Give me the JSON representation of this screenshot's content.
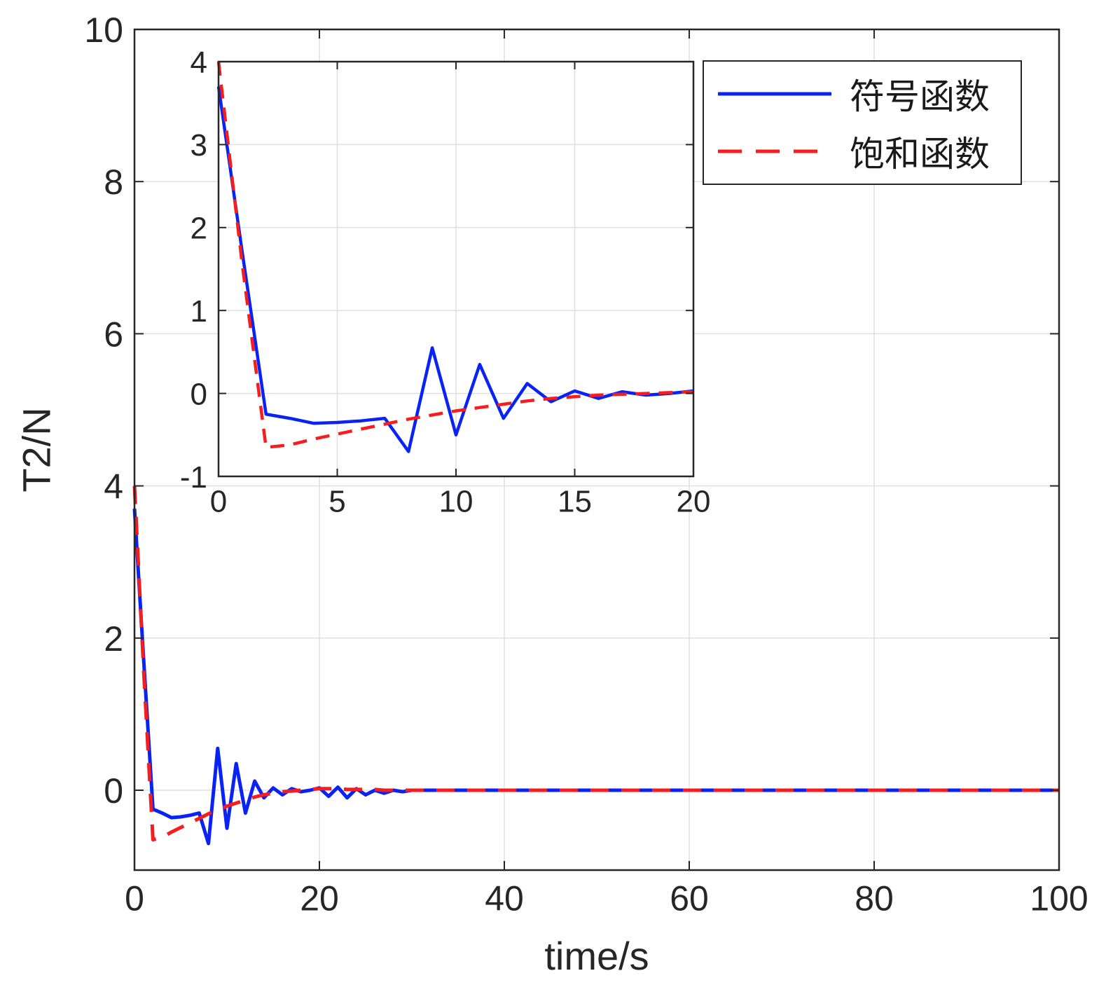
{
  "figure": {
    "background": "#ffffff"
  },
  "axis_color": "#262626",
  "grid_color": "#e0e0e0",
  "chart_data": {
    "type": "line",
    "main": {
      "xlabel": "time/s",
      "ylabel": "T2/N",
      "xlim": [
        0,
        100
      ],
      "ylim": [
        -1.05,
        10
      ],
      "xticks": [
        0,
        20,
        40,
        60,
        80,
        100
      ],
      "yticks": [
        0,
        2,
        4,
        6,
        8,
        10
      ],
      "grid": true,
      "series": [
        {
          "id": "sign-function",
          "name": "符号函数",
          "color": "#0a23f5",
          "style": "solid",
          "x": [
            0,
            1,
            2,
            3,
            4,
            5,
            6,
            7,
            8,
            9,
            10,
            11,
            12,
            13,
            14,
            15,
            16,
            17,
            18,
            19,
            20,
            21,
            22,
            23,
            24,
            25,
            26,
            27,
            28,
            29,
            30,
            35,
            40,
            45,
            50,
            55,
            60,
            65,
            70,
            75,
            80,
            85,
            90,
            95,
            100
          ],
          "y": [
            3.7,
            1.7,
            -0.25,
            -0.3,
            -0.36,
            -0.35,
            -0.33,
            -0.3,
            -0.7,
            0.55,
            -0.5,
            0.35,
            -0.3,
            0.12,
            -0.1,
            0.03,
            -0.06,
            0.02,
            -0.02,
            0,
            0.03,
            -0.08,
            0.04,
            -0.1,
            0.02,
            -0.06,
            0,
            -0.04,
            0,
            -0.02,
            0,
            0,
            0,
            0,
            0,
            0,
            0,
            0,
            0,
            0,
            0,
            0,
            0,
            0,
            0
          ]
        },
        {
          "id": "saturation-function",
          "name": "饱和函数",
          "color": "#f51d1d",
          "style": "dashed",
          "x": [
            0,
            1,
            2,
            3,
            4,
            5,
            6,
            7,
            8,
            9,
            10,
            11,
            12,
            13,
            14,
            15,
            16,
            17,
            18,
            19,
            20,
            21,
            22,
            23,
            24,
            25,
            26,
            27,
            28,
            29,
            30,
            35,
            40,
            45,
            50,
            55,
            60,
            65,
            70,
            75,
            80,
            85,
            90,
            95,
            100
          ],
          "y": [
            4,
            1.55,
            -0.65,
            -0.62,
            -0.55,
            -0.49,
            -0.43,
            -0.37,
            -0.31,
            -0.26,
            -0.21,
            -0.17,
            -0.13,
            -0.09,
            -0.06,
            -0.04,
            -0.02,
            -0.01,
            0,
            0.01,
            0.02,
            0.02,
            0.02,
            0.01,
            0.01,
            0.01,
            0.01,
            0,
            0,
            0,
            0,
            0,
            0,
            0,
            0,
            0,
            0,
            0,
            0,
            0,
            0,
            0,
            0,
            0,
            0
          ]
        }
      ]
    },
    "inset": {
      "xlim": [
        0,
        20
      ],
      "ylim": [
        -1,
        4
      ],
      "xticks": [
        0,
        5,
        10,
        15,
        20
      ],
      "yticks": [
        -1,
        0,
        1,
        2,
        3,
        4
      ],
      "grid": true
    },
    "legend": {
      "position": "top-right"
    }
  }
}
